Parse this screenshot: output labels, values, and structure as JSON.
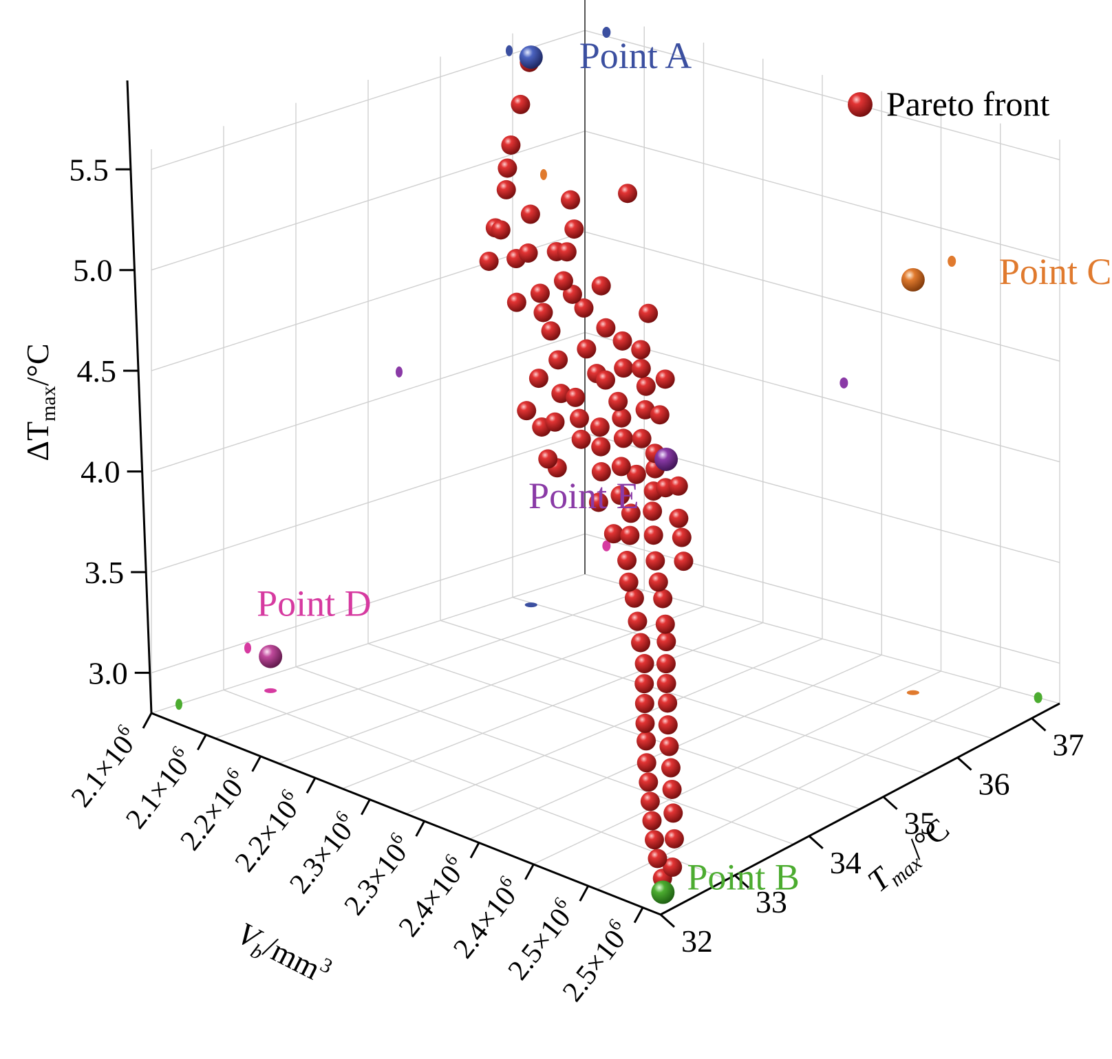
{
  "chart_data": {
    "type": "scatter",
    "subtype": "3d-scatter",
    "title": "",
    "zlabel": {
      "symbol": "ΔT",
      "subscript": "max",
      "unit": "/°C"
    },
    "xlabel": {
      "symbol": "V",
      "subscript": "b",
      "unit": "/mm",
      "superscript": "3"
    },
    "ylabel": {
      "symbol": "T",
      "subscript": "max",
      "unit": "/°C"
    },
    "z_ticks": [
      "5.5",
      "5.0",
      "4.5",
      "4.0",
      "3.5",
      "3.0"
    ],
    "x_ticks": [
      "2.1×10",
      "2.1×10",
      "2.2×10",
      "2.2×10",
      "2.3×10",
      "2.3×10",
      "2.4×10",
      "2.4×10",
      "2.5×10",
      "2.5×10"
    ],
    "x_tick_exponent": "6",
    "y_ticks": [
      "32",
      "33",
      "34",
      "35",
      "36",
      "37"
    ],
    "zlim": [
      2.8,
      5.6
    ],
    "xlim": [
      2080000.0,
      2520000.0
    ],
    "ylim": [
      31.6,
      37.9
    ],
    "grid": true,
    "legend": {
      "position": "top-right",
      "entries": [
        {
          "label": "Pareto front",
          "color": "#d42020"
        }
      ]
    },
    "colors": {
      "pareto": "#d42020",
      "point_a": "#3b4fa0",
      "point_b": "#4cac30",
      "point_c": "#e07a2e",
      "point_d": "#d63aa0",
      "point_e": "#8a3aa6"
    },
    "highlight_points": [
      {
        "label": "Point A",
        "key": "point_a",
        "vb": 2100000.0,
        "tmax": 36.8,
        "dt": 5.52
      },
      {
        "label": "Point B",
        "key": "point_b",
        "vb": 2500000.0,
        "tmax": 32.0,
        "dt": 2.8
      },
      {
        "label": "Point C",
        "key": "point_c",
        "vb": 2420000.0,
        "tmax": 37.3,
        "dt": 4.85
      },
      {
        "label": "Point D",
        "key": "point_d",
        "vb": 2100000.0,
        "tmax": 33.0,
        "dt": 2.97
      },
      {
        "label": "Point E",
        "key": "point_e",
        "vb": 2320000.0,
        "tmax": 35.2,
        "dt": 4.1
      }
    ],
    "series": [
      {
        "name": "Pareto front",
        "points": [
          [
            2101000.0,
            36.76,
            5.5
          ],
          [
            2111000.0,
            36.47,
            5.34
          ],
          [
            2124000.0,
            36.12,
            5.2
          ],
          [
            2132000.0,
            35.94,
            5.12
          ],
          [
            2139000.0,
            35.81,
            5.04
          ],
          [
            2150000.0,
            35.47,
            4.91
          ],
          [
            2162000.0,
            35.18,
            4.8
          ],
          [
            2158000.0,
            35.42,
            4.92
          ],
          [
            2178000.0,
            35.53,
            5.02
          ],
          [
            2187000.0,
            35.17,
            4.86
          ],
          [
            2196000.0,
            35.2,
            4.9
          ],
          [
            2202000.0,
            34.93,
            4.7
          ],
          [
            2205000.0,
            35.68,
            5.12
          ],
          [
            2213000.0,
            35.34,
            4.92
          ],
          [
            2217000.0,
            35.03,
            4.76
          ],
          [
            2221000.0,
            35.47,
            5.03
          ],
          [
            2226000.0,
            35.28,
            4.95
          ],
          [
            2230000.0,
            34.86,
            4.71
          ],
          [
            2238000.0,
            35.03,
            4.86
          ],
          [
            2244000.0,
            34.74,
            4.66
          ],
          [
            2249000.0,
            34.98,
            4.82
          ],
          [
            2254000.0,
            34.39,
            4.49
          ],
          [
            2256000.0,
            35.69,
            5.24
          ],
          [
            2258000.0,
            34.14,
            4.37
          ],
          [
            2263000.0,
            34.53,
            4.58
          ],
          [
            2264000.0,
            34.9,
            4.79
          ],
          [
            2270000.0,
            35.06,
            4.89
          ],
          [
            2275000.0,
            34.08,
            4.33
          ],
          [
            2278000.0,
            34.32,
            4.47
          ],
          [
            2283000.0,
            34.62,
            4.66
          ],
          [
            2285000.0,
            34.11,
            4.37
          ],
          [
            2289000.0,
            34.81,
            4.75
          ],
          [
            2292000.0,
            34.3,
            4.48
          ],
          [
            2294000.0,
            33.85,
            4.24
          ],
          [
            2298000.0,
            34.52,
            4.58
          ],
          [
            2302000.0,
            34.19,
            4.41
          ],
          [
            2304000.0,
            33.82,
            4.22
          ],
          [
            2308000.0,
            34.74,
            4.73
          ],
          [
            2310000.0,
            34.45,
            4.58
          ],
          [
            2313000.0,
            34.03,
            4.35
          ],
          [
            2317000.0,
            34.98,
            4.85
          ],
          [
            2319000.0,
            34.57,
            4.64
          ],
          [
            2322000.0,
            34.16,
            4.41
          ],
          [
            2325000.0,
            34.73,
            4.72
          ],
          [
            2327000.0,
            34.35,
            4.52
          ],
          [
            2331000.0,
            34.02,
            4.35
          ],
          [
            2333000.0,
            34.6,
            4.66
          ],
          [
            2336000.0,
            34.25,
            4.47
          ],
          [
            2339000.0,
            33.89,
            4.26
          ],
          [
            2342000.0,
            34.52,
            4.6
          ],
          [
            2344000.0,
            34.14,
            4.4
          ],
          [
            2347000.0,
            33.71,
            4.15
          ],
          [
            2350000.0,
            34.37,
            4.52
          ],
          [
            2352000.0,
            33.97,
            4.3
          ],
          [
            2355000.0,
            34.59,
            4.65
          ],
          [
            2358000.0,
            34.18,
            4.42
          ],
          [
            2361000.0,
            33.8,
            4.2
          ],
          [
            2363000.0,
            34.37,
            4.52
          ],
          [
            2366000.0,
            33.96,
            4.29
          ],
          [
            2369000.0,
            33.56,
            4.06
          ],
          [
            2372000.0,
            34.14,
            4.38
          ],
          [
            2375000.0,
            33.72,
            4.15
          ],
          [
            2378000.0,
            34.04,
            4.33
          ],
          [
            2381000.0,
            33.6,
            4.07
          ],
          [
            2384000.0,
            33.91,
            4.25
          ],
          [
            2387000.0,
            33.45,
            3.98
          ],
          [
            2390000.0,
            33.79,
            4.18
          ],
          [
            2393000.0,
            33.94,
            4.28
          ],
          [
            2396000.0,
            33.32,
            3.91
          ],
          [
            2399000.0,
            33.65,
            4.1
          ],
          [
            2402000.0,
            33.98,
            4.3
          ],
          [
            2405000.0,
            33.25,
            3.86
          ],
          [
            2408000.0,
            33.52,
            4.01
          ],
          [
            2411000.0,
            33.83,
            4.18
          ],
          [
            2414000.0,
            33.14,
            3.78
          ],
          [
            2417000.0,
            33.41,
            3.94
          ],
          [
            2420000.0,
            33.72,
            4.12
          ],
          [
            2423000.0,
            33.03,
            3.71
          ],
          [
            2426000.0,
            33.32,
            3.89
          ],
          [
            2429000.0,
            33.59,
            4.04
          ],
          [
            2432000.0,
            32.93,
            3.64
          ],
          [
            2435000.0,
            33.2,
            3.8
          ],
          [
            2438000.0,
            32.82,
            3.57
          ],
          [
            2441000.0,
            33.11,
            3.74
          ],
          [
            2444000.0,
            32.72,
            3.5
          ],
          [
            2447000.0,
            33.0,
            3.66
          ],
          [
            2450000.0,
            32.62,
            3.43
          ],
          [
            2453000.0,
            32.9,
            3.59
          ],
          [
            2456000.0,
            32.53,
            3.37
          ],
          [
            2459000.0,
            32.81,
            3.52
          ],
          [
            2462000.0,
            32.43,
            3.29
          ],
          [
            2465000.0,
            32.71,
            3.44
          ],
          [
            2468000.0,
            32.35,
            3.22
          ],
          [
            2471000.0,
            32.62,
            3.36
          ],
          [
            2474000.0,
            32.27,
            3.15
          ],
          [
            2477000.0,
            32.54,
            3.28
          ],
          [
            2480000.0,
            32.19,
            3.08
          ],
          [
            2483000.0,
            32.45,
            3.2
          ],
          [
            2486000.0,
            32.12,
            3.01
          ],
          [
            2489000.0,
            32.36,
            3.11
          ],
          [
            2492000.0,
            32.06,
            2.94
          ],
          [
            2495000.0,
            32.27,
            3.01
          ],
          [
            2498000.0,
            32.03,
            2.86
          ],
          [
            2500000.0,
            32.15,
            2.9
          ]
        ]
      }
    ]
  }
}
